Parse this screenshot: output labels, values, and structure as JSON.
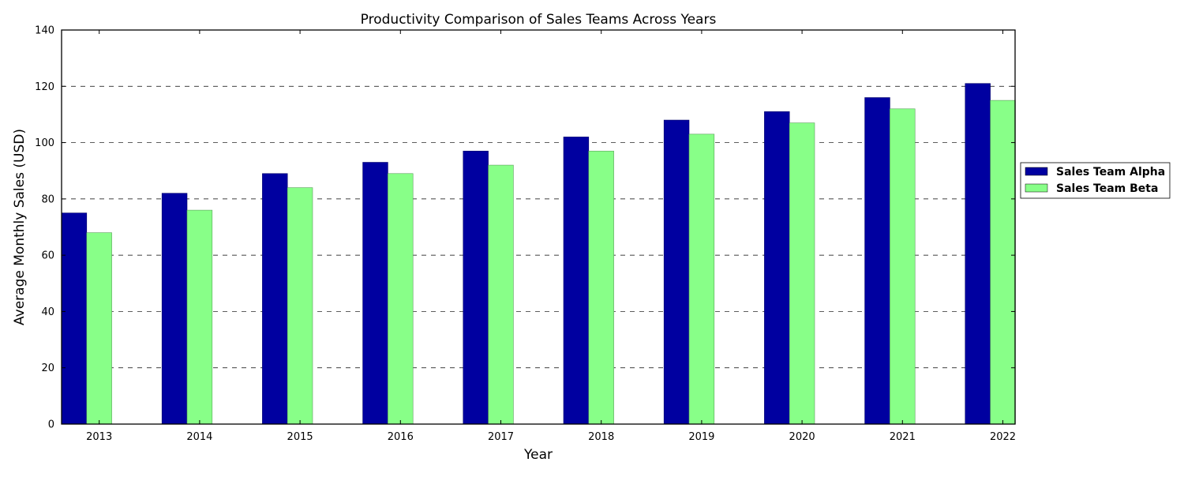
{
  "chart_data": {
    "type": "bar",
    "title": "Productivity Comparison of Sales Teams Across Years",
    "xlabel": "Year",
    "ylabel": "Average Monthly Sales (USD)",
    "categories": [
      "2013",
      "2014",
      "2015",
      "2016",
      "2017",
      "2018",
      "2019",
      "2020",
      "2021",
      "2022"
    ],
    "series": [
      {
        "name": "Sales Team Alpha",
        "color": "#0000a0",
        "values": [
          75,
          82,
          89,
          93,
          97,
          102,
          108,
          111,
          116,
          121
        ]
      },
      {
        "name": "Sales Team Beta",
        "color": "#88ff88",
        "values": [
          68,
          76,
          84,
          89,
          92,
          97,
          103,
          107,
          112,
          115
        ]
      }
    ],
    "ylim": [
      0,
      140
    ],
    "yticks": [
      0,
      20,
      40,
      60,
      80,
      100,
      120,
      140
    ],
    "grid": "horizontal-dashed",
    "legend_position": "right"
  }
}
